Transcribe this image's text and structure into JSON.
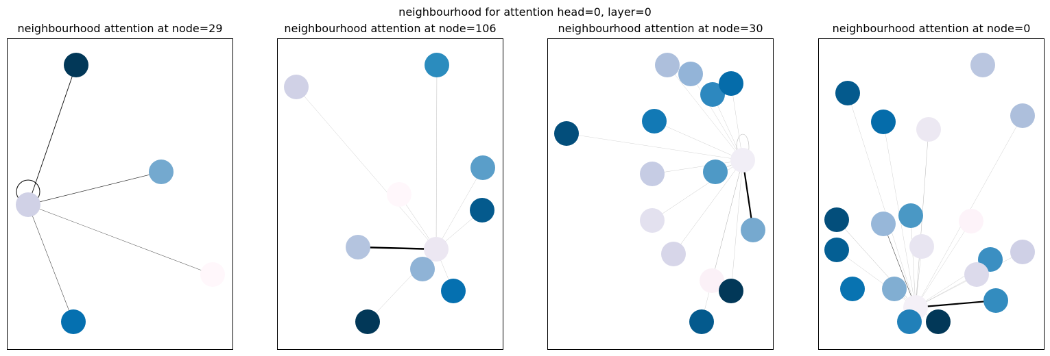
{
  "figure": {
    "suptitle": "neighbourhood for attention head=0, layer=0"
  },
  "panels": [
    {
      "title": "neighbourhood attention at node=29",
      "center": 0,
      "nodes": [
        {
          "color": "#d0d1e6",
          "self_loop": true
        },
        {
          "color": "#023858"
        },
        {
          "color": "#74a9cf"
        },
        {
          "color": "#fff7fb"
        },
        {
          "color": "#0570b0"
        }
      ],
      "edges": [
        {
          "target": 1,
          "weight": 0.9
        },
        {
          "target": 2,
          "weight": 0.7
        },
        {
          "target": 3,
          "weight": 0.55
        },
        {
          "target": 4,
          "weight": 0.6
        }
      ]
    },
    {
      "title": "neighbourhood attention at node=106",
      "center": 0,
      "nodes": [
        {
          "color": "#ece7f2"
        },
        {
          "color": "#d0d1e6"
        },
        {
          "color": "#2b8cbe"
        },
        {
          "color": "#fff7fb"
        },
        {
          "color": "#5a9ec9"
        },
        {
          "color": "#045a8d"
        },
        {
          "color": "#b4c4df"
        },
        {
          "color": "#8fb3d6"
        },
        {
          "color": "#0570b0"
        },
        {
          "color": "#023858"
        }
      ],
      "edges": [
        {
          "target": 1,
          "weight": 0.12
        },
        {
          "target": 2,
          "weight": 0.25
        },
        {
          "target": 3,
          "weight": 0.15
        },
        {
          "target": 4,
          "weight": 0.1
        },
        {
          "target": 5,
          "weight": 0.15
        },
        {
          "target": 6,
          "weight": 2.4
        },
        {
          "target": 7,
          "weight": 0.2
        },
        {
          "target": 8,
          "weight": 0.1
        },
        {
          "target": 9,
          "weight": 0.15
        }
      ]
    },
    {
      "title": "neighbourhood attention at node=30",
      "center": 0,
      "nodes": [
        {
          "color": "#f1eef6",
          "self_loop": true
        },
        {
          "color": "#adbfdc"
        },
        {
          "color": "#93b4d8"
        },
        {
          "color": "#2d88bf"
        },
        {
          "color": "#056caa"
        },
        {
          "color": "#1279b5"
        },
        {
          "color": "#034e7b"
        },
        {
          "color": "#c6cce4"
        },
        {
          "color": "#4e99c6"
        },
        {
          "color": "#e3e1ef"
        },
        {
          "color": "#76a9cf"
        },
        {
          "color": "#d7d6e9"
        },
        {
          "color": "#fbf1f7"
        },
        {
          "color": "#023858"
        },
        {
          "color": "#045a8d"
        }
      ],
      "edges": [
        {
          "target": 1,
          "weight": 0.08
        },
        {
          "target": 2,
          "weight": 0.08
        },
        {
          "target": 3,
          "weight": 0.1
        },
        {
          "target": 4,
          "weight": 0.1
        },
        {
          "target": 5,
          "weight": 0.1
        },
        {
          "target": 6,
          "weight": 0.05
        },
        {
          "target": 7,
          "weight": 0.1
        },
        {
          "target": 8,
          "weight": 0.3
        },
        {
          "target": 9,
          "weight": 0.15
        },
        {
          "target": 10,
          "weight": 2.2
        },
        {
          "target": 11,
          "weight": 0.15
        },
        {
          "target": 12,
          "weight": 0.08
        },
        {
          "target": 13,
          "weight": 0.1
        },
        {
          "target": 14,
          "weight": 0.08
        }
      ]
    },
    {
      "title": "neighbourhood attention at node=0",
      "center": 0,
      "nodes": [
        {
          "color": "#f4f0f7"
        },
        {
          "color": "#bac6e0"
        },
        {
          "color": "#045a8d"
        },
        {
          "color": "#adbfdc"
        },
        {
          "color": "#056caa"
        },
        {
          "color": "#ece8f2"
        },
        {
          "color": "#fdf3f9"
        },
        {
          "color": "#034e7b"
        },
        {
          "color": "#97b7d9"
        },
        {
          "color": "#4a98c5"
        },
        {
          "color": "#e8e5f1"
        },
        {
          "color": "#045f94"
        },
        {
          "color": "#3b8fc2"
        },
        {
          "color": "#cfd0e6"
        },
        {
          "color": "#dcdaeb"
        },
        {
          "color": "#0873b1"
        },
        {
          "color": "#81aed2"
        },
        {
          "color": "#338cbf"
        },
        {
          "color": "#2180b9"
        },
        {
          "color": "#023858"
        }
      ],
      "edges": [
        {
          "target": 2,
          "weight": 0.08
        },
        {
          "target": 3,
          "weight": 0.1
        },
        {
          "target": 4,
          "weight": 0.08
        },
        {
          "target": 5,
          "weight": 0.3
        },
        {
          "target": 6,
          "weight": 0.08
        },
        {
          "target": 7,
          "weight": 0.3
        },
        {
          "target": 8,
          "weight": 0.6
        },
        {
          "target": 9,
          "weight": 0.15
        },
        {
          "target": 10,
          "weight": 0.15
        },
        {
          "target": 11,
          "weight": 0.1
        },
        {
          "target": 12,
          "weight": 0.1
        },
        {
          "target": 13,
          "weight": 0.1
        },
        {
          "target": 14,
          "weight": 0.1
        },
        {
          "target": 16,
          "weight": 0.1
        },
        {
          "target": 17,
          "weight": 2.2
        },
        {
          "target": 18,
          "weight": 0.2
        },
        {
          "target": 19,
          "weight": 0.15
        }
      ]
    }
  ]
}
